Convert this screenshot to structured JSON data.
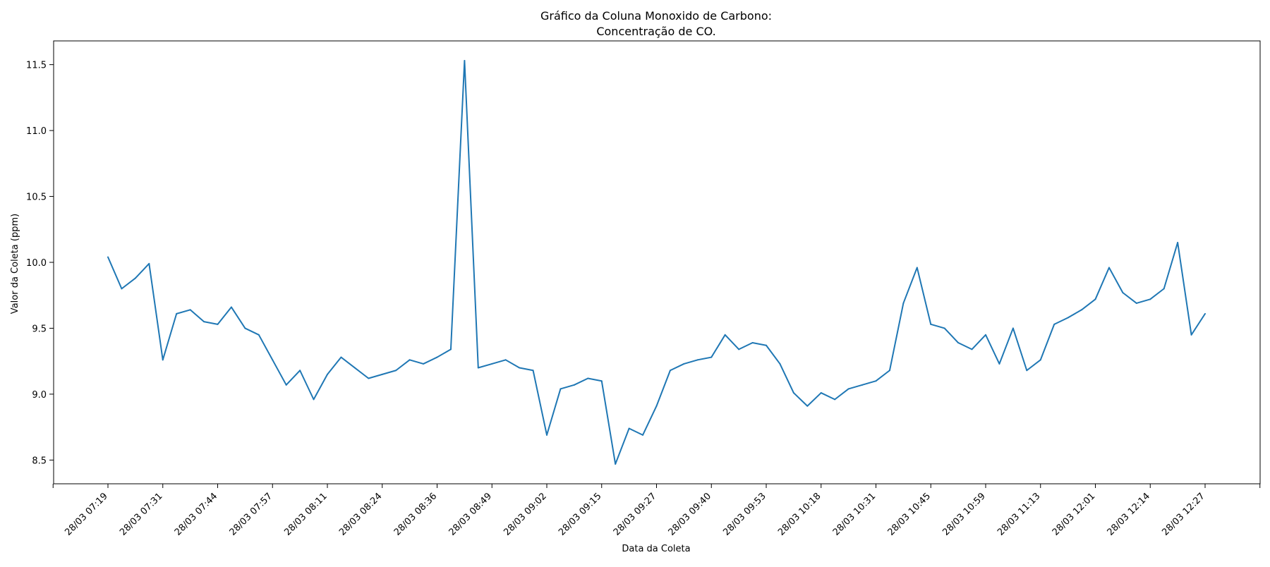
{
  "chart_data": {
    "type": "line",
    "title": [
      "Gráfico da Coluna Monoxido de Carbono:",
      "Concentração de CO."
    ],
    "xlabel": "Data da Coleta",
    "ylabel": "Valor da Coleta (ppm)",
    "ylim": [
      8.32,
      11.68
    ],
    "yticks": [
      "8.5",
      "9.0",
      "9.5",
      "10.0",
      "10.5",
      "11.0",
      "11.5"
    ],
    "xtick_labels": [
      "28/03 07:19",
      "28/03 07:31",
      "28/03 07:44",
      "28/03 07:57",
      "28/03 08:11",
      "28/03 08:24",
      "28/03 08:36",
      "28/03 08:49",
      "28/03 09:02",
      "28/03 09:15",
      "28/03 09:27",
      "28/03 09:40",
      "28/03 09:53",
      "28/03 10:18",
      "28/03 10:31",
      "28/03 10:45",
      "28/03 10:59",
      "28/03 11:13",
      "28/03 12:01",
      "28/03 12:14",
      "28/03 12:27"
    ],
    "grid": false,
    "series": [
      {
        "color": "#1f77b4",
        "values": [
          10.04,
          9.8,
          9.88,
          9.99,
          9.26,
          9.61,
          9.64,
          9.55,
          9.53,
          9.66,
          9.5,
          9.45,
          9.26,
          9.07,
          9.18,
          8.96,
          9.15,
          9.28,
          9.2,
          9.12,
          9.15,
          9.18,
          9.26,
          9.23,
          9.28,
          9.34,
          11.53,
          9.2,
          9.23,
          9.26,
          9.2,
          9.18,
          8.69,
          9.04,
          9.07,
          9.12,
          9.1,
          8.47,
          8.74,
          8.69,
          8.91,
          9.18,
          9.23,
          9.26,
          9.28,
          9.45,
          9.34,
          9.39,
          9.37,
          9.23,
          9.01,
          8.91,
          9.01,
          8.96,
          9.04,
          9.07,
          9.1,
          9.18,
          9.69,
          9.96,
          9.53,
          9.5,
          9.39,
          9.34,
          9.45,
          9.23,
          9.5,
          9.18,
          9.26,
          9.53,
          9.58,
          9.64,
          9.72,
          9.96,
          9.77,
          9.69,
          9.72,
          9.8,
          10.15,
          9.45,
          9.61
        ]
      }
    ]
  }
}
